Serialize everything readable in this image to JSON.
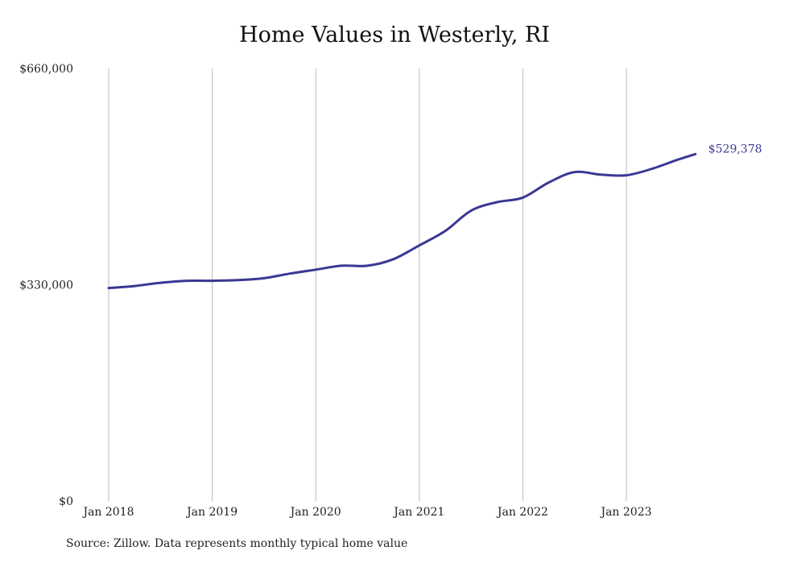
{
  "chart_data": {
    "type": "line",
    "title": "Home Values in Westerly, RI",
    "xlabel": "",
    "ylabel": "",
    "ylim": [
      0,
      660000
    ],
    "yticks": [
      {
        "value": 0,
        "label": "$0"
      },
      {
        "value": 330000,
        "label": "$330,000"
      },
      {
        "value": 660000,
        "label": "$660,000"
      }
    ],
    "xticks": [
      {
        "value": "2018-01",
        "label": "Jan 2018"
      },
      {
        "value": "2019-01",
        "label": "Jan 2019"
      },
      {
        "value": "2020-01",
        "label": "Jan 2020"
      },
      {
        "value": "2021-01",
        "label": "Jan 2021"
      },
      {
        "value": "2022-01",
        "label": "Jan 2022"
      },
      {
        "value": "2023-01",
        "label": "Jan 2023"
      }
    ],
    "grid": "vertical",
    "line_color": "#3b3894",
    "series": [
      {
        "end_label": "$529,378",
        "points": [
          [
            "2018-01",
            325000
          ],
          [
            "2018-04",
            328000
          ],
          [
            "2018-07",
            333000
          ],
          [
            "2018-10",
            336000
          ],
          [
            "2019-01",
            336000
          ],
          [
            "2019-04",
            337000
          ],
          [
            "2019-07",
            340000
          ],
          [
            "2019-10",
            347000
          ],
          [
            "2020-01",
            353000
          ],
          [
            "2020-04",
            359000
          ],
          [
            "2020-07",
            359000
          ],
          [
            "2020-10",
            369000
          ],
          [
            "2021-01",
            390000
          ],
          [
            "2021-04",
            412000
          ],
          [
            "2021-07",
            443000
          ],
          [
            "2021-10",
            456000
          ],
          [
            "2022-01",
            463000
          ],
          [
            "2022-04",
            486000
          ],
          [
            "2022-07",
            502000
          ],
          [
            "2022-10",
            498000
          ],
          [
            "2023-01",
            497000
          ],
          [
            "2023-04",
            507000
          ],
          [
            "2023-07",
            521000
          ],
          [
            "2023-09",
            529378
          ]
        ]
      }
    ]
  },
  "source": "Source: Zillow. Data represents monthly typical home value"
}
